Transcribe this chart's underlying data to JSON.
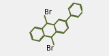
{
  "bg_color": "#f0f0f0",
  "bond_color": "#556b2f",
  "line_width": 1.3,
  "dbo": 0.012,
  "font_size": 7.0,
  "figsize": [
    1.6,
    0.82
  ],
  "dpi": 100,
  "scale": 0.13
}
